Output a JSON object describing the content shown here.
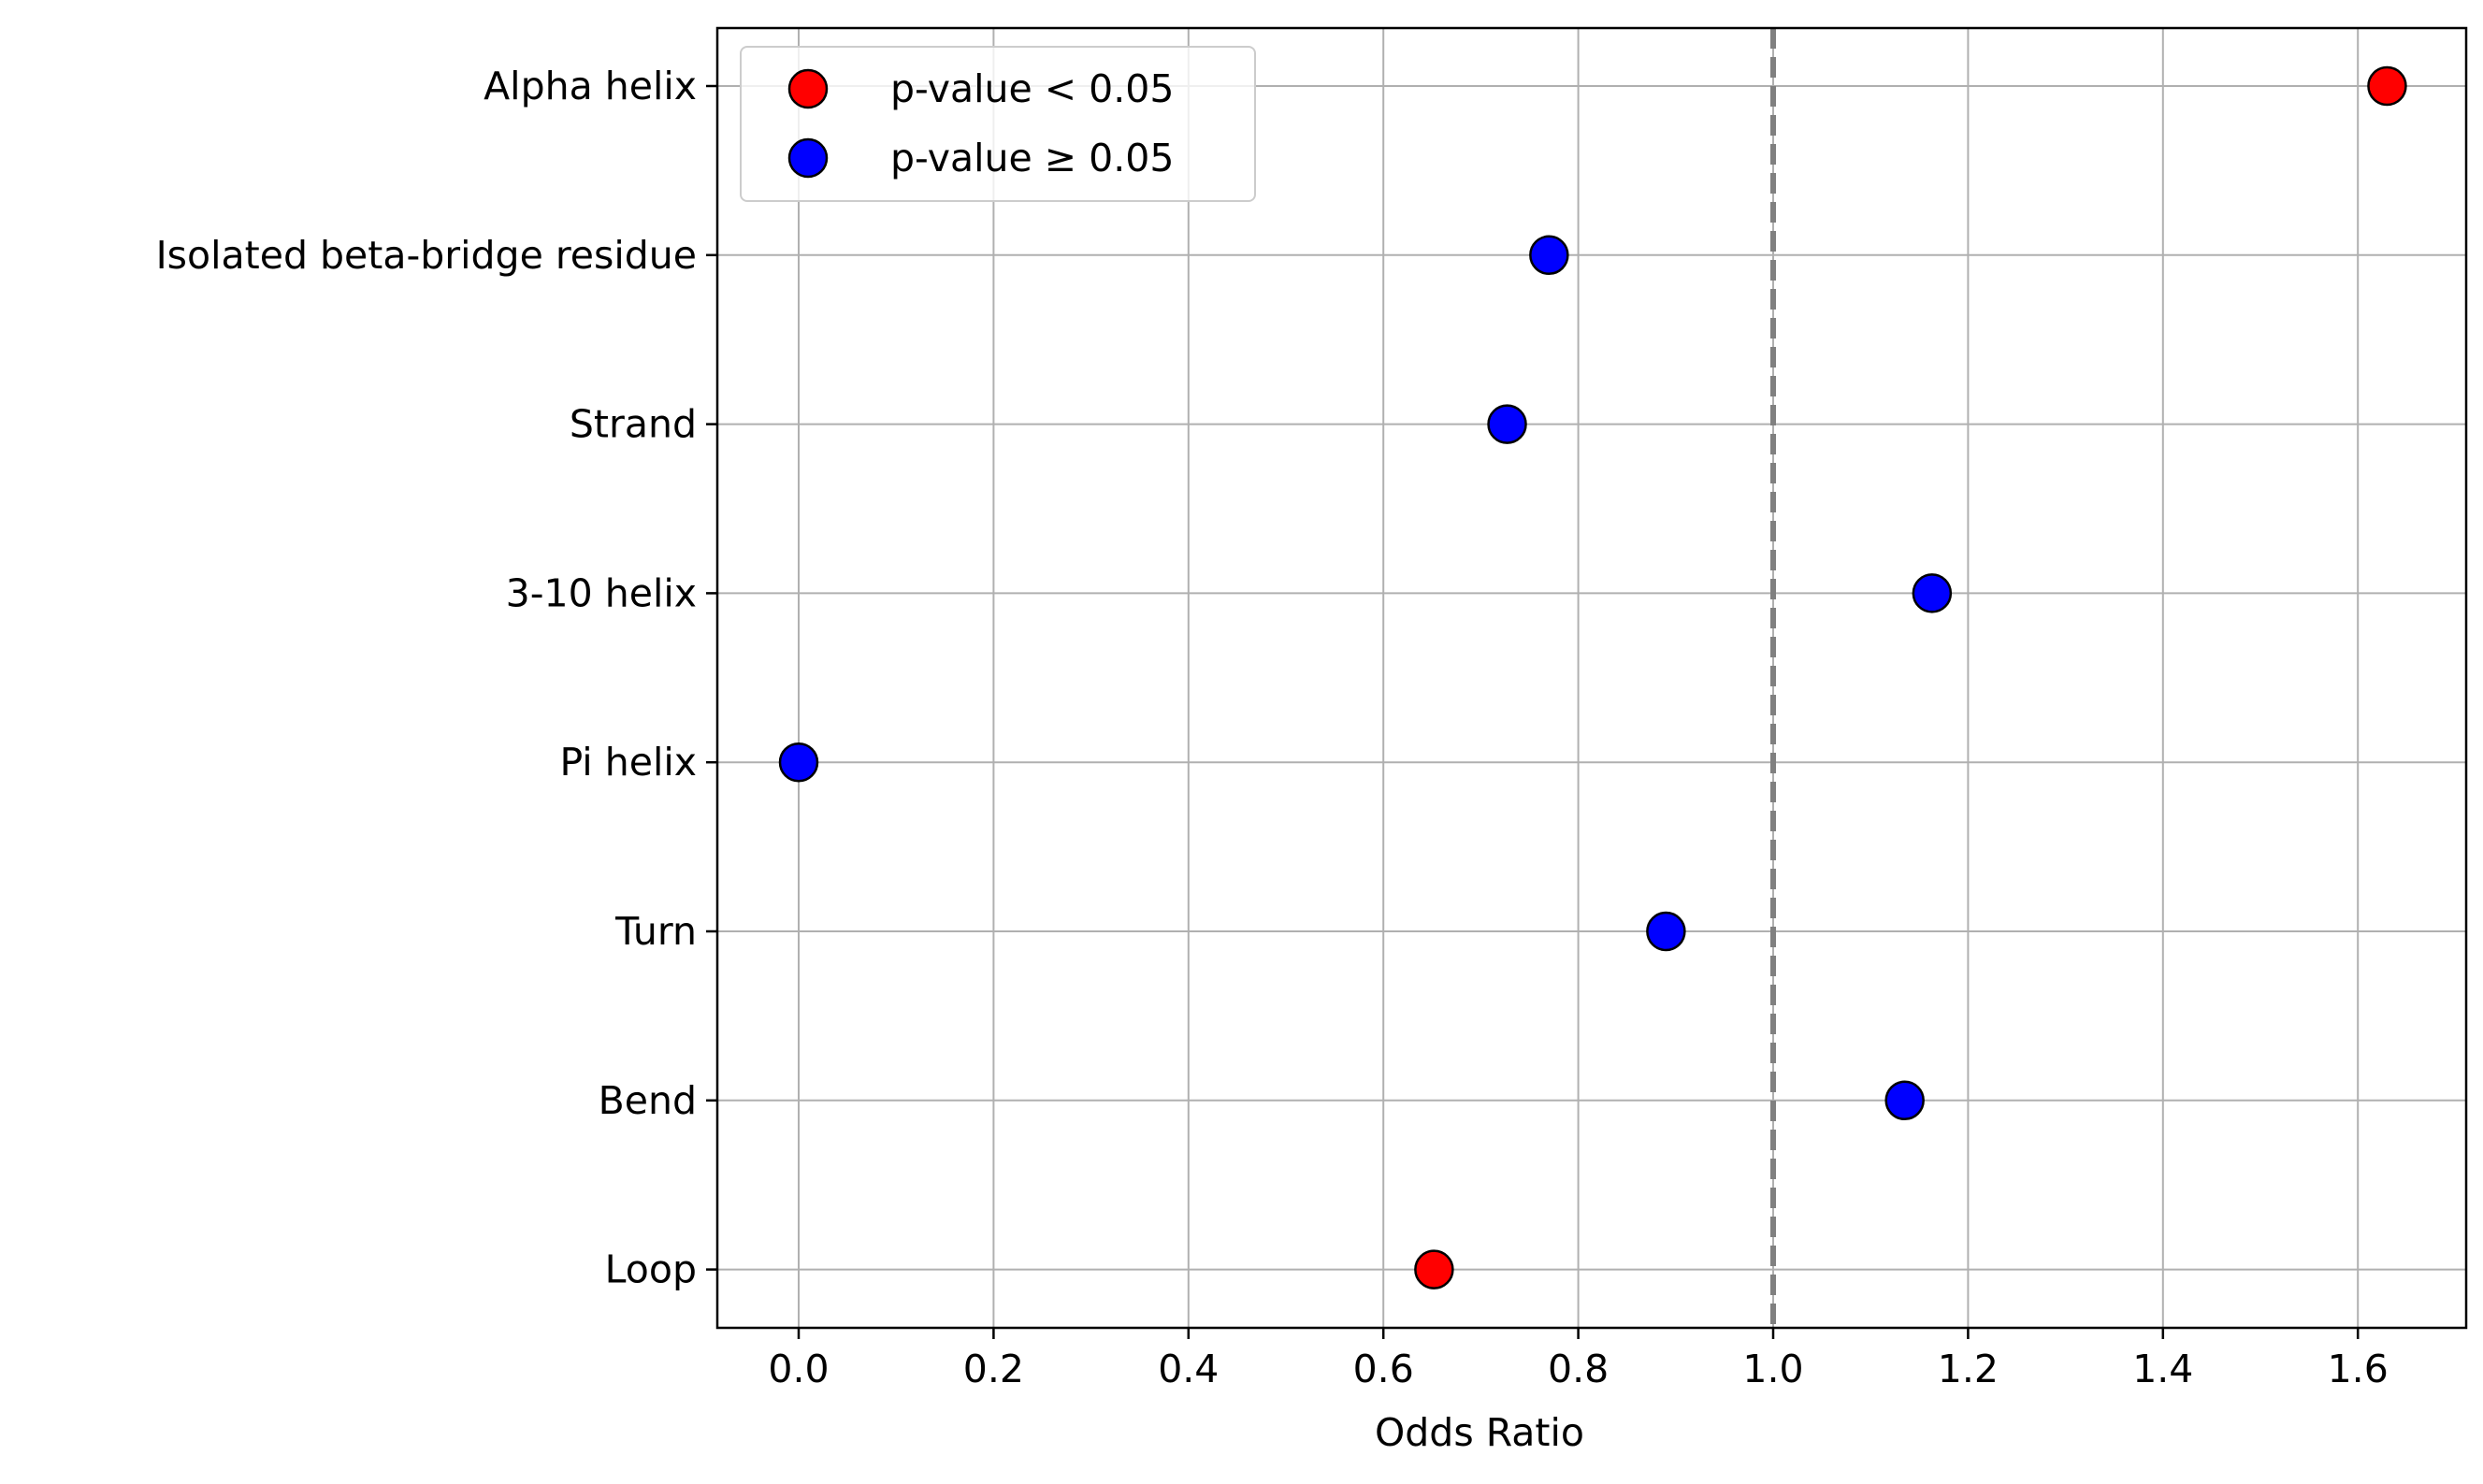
{
  "chart_data": {
    "type": "scatter",
    "title": "",
    "xlabel": "Odds Ratio",
    "ylabel": "",
    "xlim": [
      -0.08,
      1.71
    ],
    "x_ticks": [
      0.0,
      0.2,
      0.4,
      0.6,
      0.8,
      1.0,
      1.2,
      1.4,
      1.6
    ],
    "x_tick_labels": [
      "0.0",
      "0.2",
      "0.4",
      "0.6",
      "0.8",
      "1.0",
      "1.2",
      "1.4",
      "1.6"
    ],
    "categories": [
      "Alpha helix",
      "Isolated beta-bridge residue",
      "Strand",
      "3-10 helix",
      "Pi helix",
      "Turn",
      "Bend",
      "Loop"
    ],
    "points": [
      {
        "category": "Alpha helix",
        "x": 1.63,
        "significant": true
      },
      {
        "category": "Isolated beta-bridge residue",
        "x": 0.77,
        "significant": false
      },
      {
        "category": "Strand",
        "x": 0.727,
        "significant": false
      },
      {
        "category": "3-10 helix",
        "x": 1.163,
        "significant": false
      },
      {
        "category": "Pi helix",
        "x": 0.0,
        "significant": false
      },
      {
        "category": "Turn",
        "x": 0.89,
        "significant": false
      },
      {
        "category": "Bend",
        "x": 1.135,
        "significant": false
      },
      {
        "category": "Loop",
        "x": 0.652,
        "significant": true
      }
    ],
    "reference_line": {
      "x": 1.0,
      "style": "dashed",
      "color": "#808080"
    },
    "grid": true,
    "legend": {
      "position": "top-left",
      "entries": [
        {
          "label": "p-value < 0.05",
          "color": "#ff0000"
        },
        {
          "label": "p-value ≥ 0.05",
          "color": "#0000ff"
        }
      ]
    },
    "colors": {
      "significant": "#ff0000",
      "not_significant": "#0000ff",
      "marker_edge": "#000000",
      "grid": "#b0b0b0"
    }
  }
}
